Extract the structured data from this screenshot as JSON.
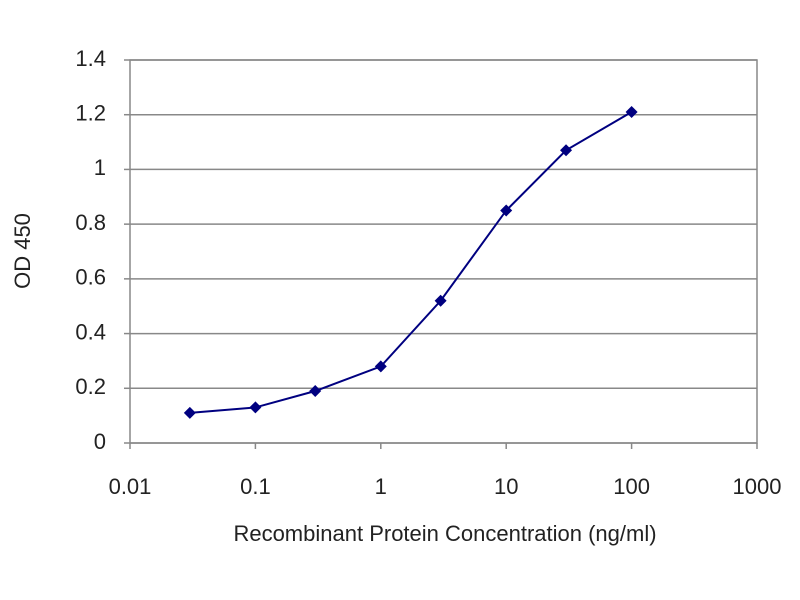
{
  "chart_data": {
    "type": "line",
    "xlabel": "Recombinant Protein Concentration (ng/ml)",
    "ylabel": "OD 450",
    "x": [
      0.03,
      0.1,
      0.3,
      1,
      3,
      10,
      30,
      100
    ],
    "series": [
      {
        "color": "#000080",
        "values": [
          0.11,
          0.13,
          0.19,
          0.28,
          0.52,
          0.85,
          1.07,
          1.21
        ]
      }
    ],
    "xlim": [
      0.01,
      1000
    ],
    "xticks": [
      0.01,
      0.1,
      1,
      10,
      100,
      1000
    ],
    "xscale": "log",
    "ylim": [
      0,
      1.4
    ],
    "yticks": [
      0,
      0.2,
      0.4,
      0.6,
      0.8,
      1,
      1.2,
      1.4
    ],
    "grid": true
  }
}
